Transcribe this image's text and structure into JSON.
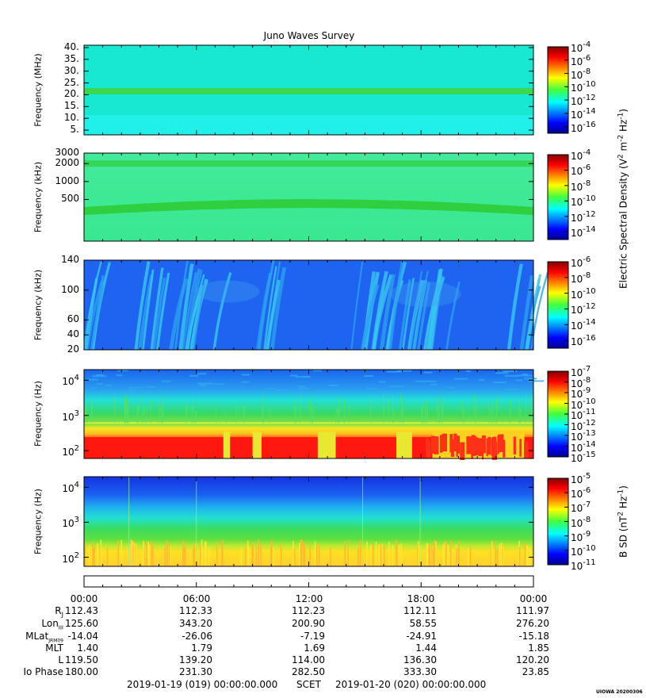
{
  "chart_data": {
    "type": "heatmap",
    "title": "Juno Waves Survey",
    "x_ticks": [
      "00:00",
      "06:00",
      "12:00",
      "18:00",
      "00:00"
    ],
    "panels": [
      {
        "id": "p1",
        "ylabel": "Frequency (MHz)",
        "scale": "linear",
        "yticks": [
          "40.",
          "35.",
          "30.",
          "25.",
          "20.",
          "15.",
          "10.",
          "5."
        ],
        "ytick_values": [
          40,
          35,
          30,
          25,
          20,
          15,
          10,
          5
        ],
        "ylim": [
          3,
          41
        ],
        "background": "#18e8d2",
        "bands": [
          {
            "value": 21.5,
            "color": "#3bd84f"
          }
        ],
        "cbar_ticks": [
          "10-4",
          "10-6",
          "10-8",
          "10-10",
          "10-12",
          "10-14",
          "10-16"
        ],
        "cbar_range": [
          -17,
          -4
        ]
      },
      {
        "id": "p2",
        "ylabel": "Frequency (kHz)",
        "scale": "log",
        "yticks": [
          "3000",
          "2000",
          "1000",
          "500"
        ],
        "ytick_values": [
          3000,
          2000,
          1000,
          500
        ],
        "ylim": [
          100,
          3000
        ],
        "background": "#3fe88f",
        "bands": [
          {
            "value": 2000,
            "color": "#35d45a"
          },
          {
            "value": 420,
            "color": "#2fcf3f"
          }
        ],
        "cbar_ticks": [
          "10-4",
          "10-6",
          "10-8",
          "10-10",
          "10-12",
          "10-14"
        ],
        "cbar_range": [
          -15,
          -4
        ]
      },
      {
        "id": "p3",
        "ylabel": "Frequency (kHz)",
        "scale": "linear",
        "yticks": [
          "140",
          "100",
          "60",
          "40",
          "20"
        ],
        "ytick_values": [
          140,
          100,
          60,
          40,
          20
        ],
        "ylim": [
          20,
          140
        ],
        "background": "#1e64f0",
        "cbar_ticks": [
          "10-6",
          "10-8",
          "10-10",
          "10-12",
          "10-14",
          "10-16"
        ],
        "cbar_range": [
          -17,
          -6
        ]
      },
      {
        "id": "p4",
        "ylabel": "Frequency (Hz)",
        "scale": "log",
        "yticks": [
          "10",
          "10",
          "10"
        ],
        "ytick_exp": [
          "4",
          "3",
          "2"
        ],
        "ytick_values": [
          10000,
          1000,
          100
        ],
        "ylim": [
          60,
          20000
        ],
        "cbar_ticks": [
          "10-7",
          "10-8",
          "10-9",
          "10-10",
          "10-11",
          "10-12",
          "10-13",
          "10-14",
          "10-15"
        ],
        "cbar_range": [
          -15,
          -7
        ]
      },
      {
        "id": "p5",
        "ylabel": "Frequency (Hz)",
        "scale": "log",
        "yticks": [
          "10",
          "10",
          "10"
        ],
        "ytick_exp": [
          "4",
          "3",
          "2"
        ],
        "ytick_values": [
          10000,
          1000,
          100
        ],
        "ylim": [
          55,
          20000
        ],
        "cbar_ticks": [
          "10-5",
          "10-6",
          "10-7",
          "10-8",
          "10-9",
          "10-10",
          "10-11"
        ],
        "cbar_range": [
          -11,
          -5
        ]
      }
    ],
    "colorbar_labels": {
      "electric": "Electric Spectral Density (V2 m-2 Hz-1)",
      "magnetic": "B SD (nT2 Hz-1)"
    },
    "ephemeris": {
      "rows": [
        {
          "label": "RJ",
          "values": [
            "112.43",
            "112.33",
            "112.23",
            "112.11",
            "111.97"
          ]
        },
        {
          "label": "LonIII",
          "values": [
            "125.60",
            "343.20",
            "200.90",
            "58.55",
            "276.20"
          ]
        },
        {
          "label": "MLatJRM09",
          "values": [
            "-14.04",
            "-26.06",
            "-7.19",
            "-24.91",
            "-15.18"
          ]
        },
        {
          "label": "MLT",
          "values": [
            "1.40",
            "1.79",
            "1.69",
            "1.44",
            "1.85"
          ]
        },
        {
          "label": "L",
          "values": [
            "119.50",
            "139.20",
            "114.00",
            "136.30",
            "120.20"
          ]
        },
        {
          "label": "Io Phase",
          "values": [
            "180.00",
            "231.30",
            "282.50",
            "333.30",
            "23.85"
          ]
        }
      ]
    },
    "footer": {
      "start": "2019-01-19 (019) 00:00:00.000",
      "scet": "SCET",
      "end": "2019-01-20 (020) 00:00:00.000",
      "credit": "UIOWA 20200306"
    }
  }
}
